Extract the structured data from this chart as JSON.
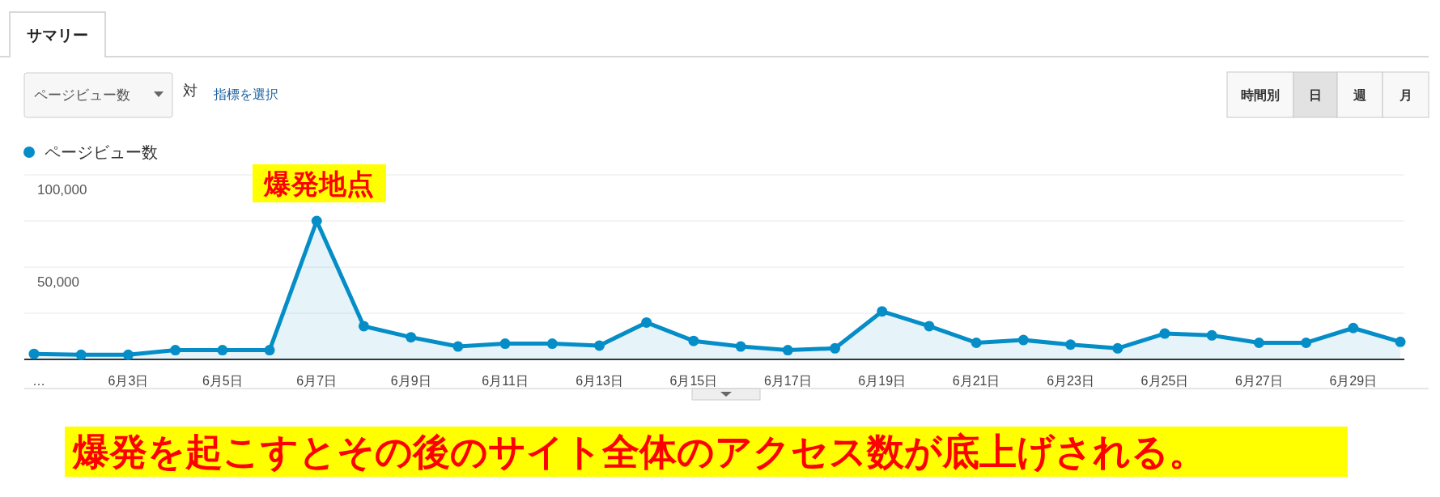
{
  "chart_data": {
    "type": "area",
    "categories": [
      "…",
      null,
      "6月3日",
      null,
      "6月5日",
      null,
      "6月7日",
      null,
      "6月9日",
      null,
      "6月11日",
      null,
      "6月13日",
      null,
      "6月15日",
      null,
      "6月17日",
      null,
      "6月19日",
      null,
      "6月21日",
      null,
      "6月23日",
      null,
      "6月25日",
      null,
      "6月27日",
      null,
      "6月29日",
      null
    ],
    "series": [
      {
        "name": "ページビュー数",
        "color": "#058dc7",
        "values": [
          3000,
          2500,
          2500,
          5000,
          5000,
          5000,
          75000,
          18000,
          12000,
          7000,
          8500,
          8500,
          7500,
          20000,
          10000,
          7000,
          5000,
          6000,
          26000,
          18000,
          9000,
          10500,
          8000,
          6000,
          14000,
          13000,
          9000,
          9000,
          17000,
          9500
        ]
      }
    ],
    "ylim": [
      0,
      100000
    ],
    "yticks": [
      {
        "value": 0,
        "label": null
      },
      {
        "value": 25000,
        "label": null
      },
      {
        "value": 50000,
        "label": "50,000"
      },
      {
        "value": 75000,
        "label": null
      },
      {
        "value": 100000,
        "label": "100,000"
      }
    ],
    "grid": "y",
    "legend": "top left",
    "marker": "circle",
    "annotations": [
      "爆発地点",
      "爆発を起こすとその後のサイト全体のアクセス数が底上げされる。",
      "サマリー",
      "ページビュー数",
      "対",
      "指標を選択",
      "時間別",
      "日",
      "週",
      "月"
    ]
  }
}
